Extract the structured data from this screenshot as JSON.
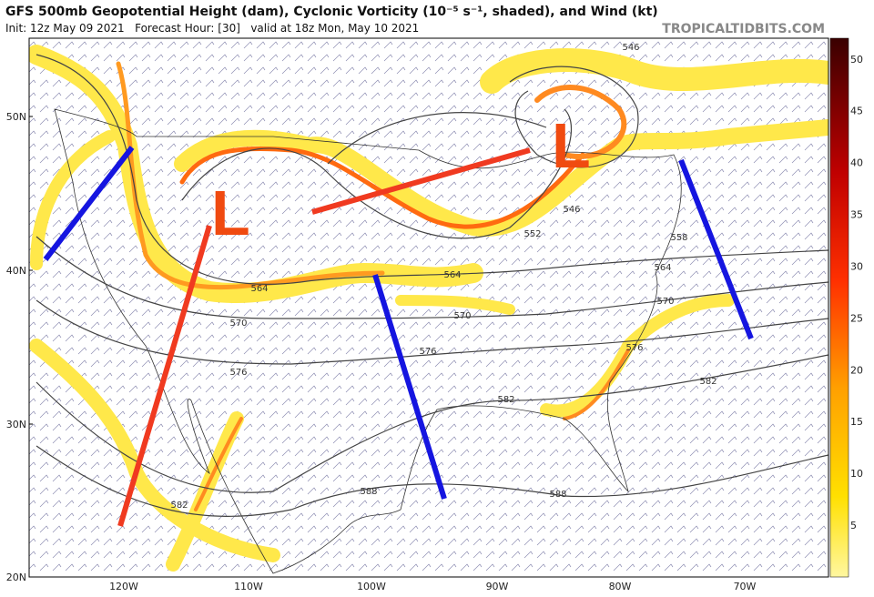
{
  "header": {
    "title": "GFS 500mb Geopotential Height (dam), Cyclonic Vorticity (10⁻⁵ s⁻¹, shaded), and Wind (kt)",
    "subtitle": "Init: 12z May 09 2021   Forecast Hour: [30]   valid at 18z Mon, May 10 2021",
    "brand": "TROPICALTIDBITS.COM"
  },
  "map": {
    "latitude_labels": [
      "50N",
      "40N",
      "30N",
      "20N"
    ],
    "longitude_labels": [
      "120W",
      "110W",
      "100W",
      "90W",
      "80W",
      "70W"
    ],
    "contour_labels": [
      546,
      546,
      552,
      558,
      564,
      564,
      564,
      570,
      570,
      570,
      576,
      576,
      576,
      582,
      582,
      582,
      588,
      588
    ],
    "annotations": [
      "L",
      "L"
    ]
  },
  "colorbar": {
    "labels": [
      5,
      10,
      15,
      20,
      25,
      30,
      35,
      40,
      45,
      50
    ]
  }
}
